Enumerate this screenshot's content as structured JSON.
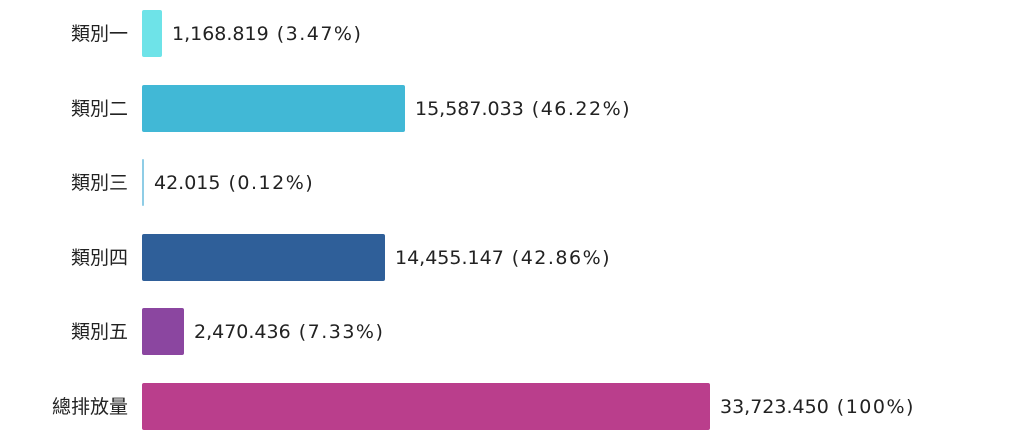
{
  "chart_data": {
    "type": "bar",
    "orientation": "horizontal",
    "categories": [
      "類別一",
      "類別二",
      "類別三",
      "類別四",
      "類別五",
      "總排放量"
    ],
    "values": [
      1168.819,
      15587.033,
      42.015,
      14455.147,
      2470.436,
      33723.45
    ],
    "value_labels": [
      "1,168.819",
      "15,587.033",
      "42.015",
      "14,455.147",
      "2,470.436",
      "33,723.450"
    ],
    "percent_labels": [
      "(3.47%)",
      "(46.22%)",
      "(0.12%)",
      "(42.86%)",
      "(7.33%)",
      "(100%)"
    ],
    "colors": [
      "#6ee3e8",
      "#41b8d6",
      "#8fcde6",
      "#2f5f99",
      "#8b46a0",
      "#ba3e8c"
    ],
    "xlim": [
      0,
      33723.45
    ]
  }
}
